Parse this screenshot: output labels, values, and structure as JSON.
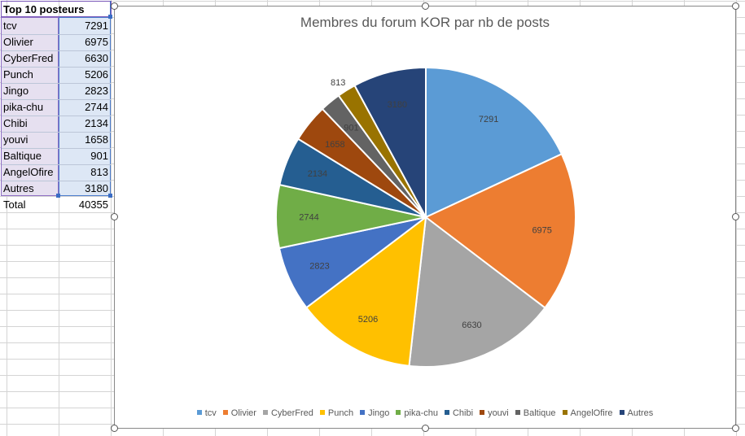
{
  "sheet": {
    "header": "Top 10 posteurs",
    "rows": [
      {
        "name": "tcv",
        "value": "7291"
      },
      {
        "name": "Olivier",
        "value": "6975"
      },
      {
        "name": "CyberFred",
        "value": "6630"
      },
      {
        "name": "Punch",
        "value": "5206"
      },
      {
        "name": "Jingo",
        "value": "2823"
      },
      {
        "name": "pika-chu",
        "value": "2744"
      },
      {
        "name": "Chibi",
        "value": "2134"
      },
      {
        "name": "youvi",
        "value": "1658"
      },
      {
        "name": "Baltique",
        "value": "901"
      },
      {
        "name": "AngelOfire",
        "value": "813"
      },
      {
        "name": "Autres",
        "value": "3180"
      }
    ],
    "total_label": "Total",
    "total_value": "40355"
  },
  "chart_data": {
    "type": "pie",
    "title": "Membres du forum KOR par nb de posts",
    "categories": [
      "tcv",
      "Olivier",
      "CyberFred",
      "Punch",
      "Jingo",
      "pika-chu",
      "Chibi",
      "youvi",
      "Baltique",
      "AngelOfire",
      "Autres"
    ],
    "values": [
      7291,
      6975,
      6630,
      5206,
      2823,
      2744,
      2134,
      1658,
      901,
      813,
      3180
    ],
    "colors": [
      "#5b9bd5",
      "#ed7d31",
      "#a5a5a5",
      "#ffc000",
      "#4472c4",
      "#70ad47",
      "#255e91",
      "#9e480e",
      "#636363",
      "#997300",
      "#264478"
    ],
    "legend_position": "bottom",
    "data_labels": true
  }
}
